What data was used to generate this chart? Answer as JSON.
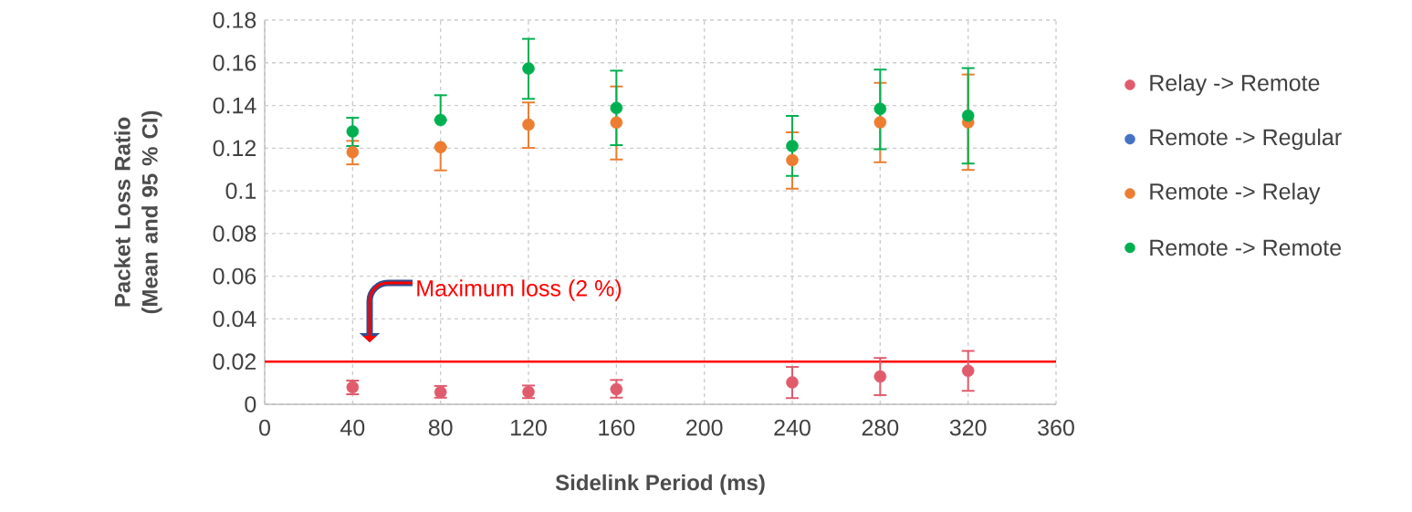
{
  "chart_data": {
    "type": "scatter",
    "xlabel": "Sidelink Period (ms)",
    "ylabel": "Packet Loss Ratio (Mean and 95 % CI)",
    "x": [
      40,
      80,
      120,
      160,
      240,
      280,
      320
    ],
    "series": [
      {
        "name": "Relay -> Remote",
        "color": "#e05c6c",
        "values": [
          0.008,
          0.0057,
          0.0058,
          0.0071,
          0.0103,
          0.013,
          0.0157
        ],
        "errors": [
          [
            0.0047,
            0.0111
          ],
          [
            0.0031,
            0.0086
          ],
          [
            0.0029,
            0.0088
          ],
          [
            0.0031,
            0.0114
          ],
          [
            0.0029,
            0.0175
          ],
          [
            0.0043,
            0.0217
          ],
          [
            0.0063,
            0.025
          ]
        ]
      },
      {
        "name": "Remote -> Regular",
        "color": "#4472c4",
        "values": [
          null,
          null,
          null,
          null,
          null,
          null,
          null
        ]
      },
      {
        "name": "Remote -> Relay",
        "color": "#ed7d31",
        "values": [
          0.1181,
          0.1205,
          0.131,
          0.132,
          0.1144,
          0.1321,
          0.1321
        ],
        "errors": [
          [
            0.1124,
            0.1234
          ],
          [
            0.1096,
            0.1205
          ],
          [
            0.1201,
            0.1414
          ],
          [
            0.1147,
            0.1489
          ],
          [
            0.101,
            0.1274
          ],
          [
            0.1134,
            0.1506
          ],
          [
            0.1098,
            0.1545
          ]
        ]
      },
      {
        "name": "Remote -> Remote",
        "color": "#00b050",
        "values": [
          0.1278,
          0.1332,
          0.1573,
          0.1388,
          0.121,
          0.1384,
          0.1352
        ],
        "errors": [
          [
            0.121,
            0.1342
          ],
          [
            0.1332,
            0.1448
          ],
          [
            0.1431,
            0.1712
          ],
          [
            0.1214,
            0.1563
          ],
          [
            0.107,
            0.1351
          ],
          [
            0.1195,
            0.1568
          ],
          [
            0.1128,
            0.1575
          ]
        ]
      }
    ],
    "xlim": [
      0,
      360
    ],
    "xticks": [
      0,
      40,
      80,
      120,
      160,
      200,
      240,
      280,
      320,
      360
    ],
    "ylim": [
      0,
      0.18
    ],
    "yticks": [
      0,
      0.02,
      0.04,
      0.06,
      0.08,
      0.1,
      0.12,
      0.14,
      0.16,
      0.18
    ],
    "ref_lines": [
      {
        "axis": "y",
        "value": 0.02,
        "label": "Maximum loss (2 %)",
        "color": "#ff0000"
      }
    ],
    "grid": true,
    "legend": "right",
    "marker": "circle"
  }
}
